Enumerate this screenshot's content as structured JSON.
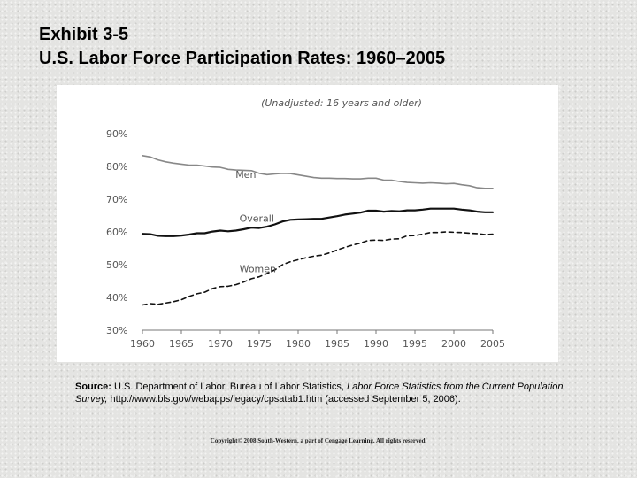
{
  "slide": {
    "title_line1": "Exhibit 3-5",
    "title_line2": "U.S. Labor Force Participation Rates: 1960–2005"
  },
  "source": {
    "label": "Source:",
    "text1": " U.S. Department of Labor, Bureau of Labor Statistics, ",
    "italic1": "Labor Force Statistics from the Current Population Survey,",
    "text2": " http://www.bls.gov/webapps/legacy/cpsatab1.htm (accessed September 5, 2006)."
  },
  "copyright": "Copyright© 2008 South-Western, a part of Cengage Learning. All rights reserved.",
  "colors": {
    "men": "#888888",
    "overall": "#111111",
    "women": "#111111",
    "axis": "#777777",
    "text": "#555555"
  },
  "chart_data": {
    "type": "line",
    "subtitle": "(Unadjusted: 16 years and older)",
    "y_tick_labels": [
      "90%",
      "80%",
      "70%",
      "60%",
      "50%",
      "40%",
      "30%"
    ],
    "y_ticks": [
      90,
      80,
      70,
      60,
      50,
      40,
      30
    ],
    "x_tick_labels": [
      "1960",
      "1965",
      "1970",
      "1975",
      "1980",
      "1985",
      "1990",
      "1995",
      "2000",
      "2005"
    ],
    "x_ticks": [
      1960,
      1965,
      1970,
      1975,
      1980,
      1985,
      1990,
      1995,
      2000,
      2005
    ],
    "xlim": [
      1960,
      2005
    ],
    "ylim": [
      30,
      90
    ],
    "grid": false,
    "x": [
      1960,
      1961,
      1962,
      1963,
      1964,
      1965,
      1966,
      1967,
      1968,
      1969,
      1970,
      1971,
      1972,
      1973,
      1974,
      1975,
      1976,
      1977,
      1978,
      1979,
      1980,
      1981,
      1982,
      1983,
      1984,
      1985,
      1986,
      1987,
      1988,
      1989,
      1990,
      1991,
      1992,
      1993,
      1994,
      1995,
      1996,
      1997,
      1998,
      1999,
      2000,
      2001,
      2002,
      2003,
      2004,
      2005
    ],
    "series": [
      {
        "name": "Men",
        "style": "solid-gray",
        "values": [
          83.3,
          82.9,
          82.0,
          81.4,
          81.0,
          80.7,
          80.4,
          80.4,
          80.1,
          79.8,
          79.7,
          79.1,
          78.9,
          78.8,
          78.7,
          77.9,
          77.5,
          77.7,
          77.9,
          77.8,
          77.4,
          77.0,
          76.6,
          76.4,
          76.4,
          76.3,
          76.3,
          76.2,
          76.2,
          76.4,
          76.4,
          75.8,
          75.8,
          75.4,
          75.1,
          75.0,
          74.9,
          75.0,
          74.9,
          74.7,
          74.8,
          74.4,
          74.1,
          73.5,
          73.3,
          73.3
        ]
      },
      {
        "name": "Overall",
        "style": "solid-black",
        "values": [
          59.4,
          59.3,
          58.8,
          58.7,
          58.7,
          58.9,
          59.2,
          59.6,
          59.6,
          60.1,
          60.4,
          60.2,
          60.4,
          60.8,
          61.3,
          61.2,
          61.6,
          62.3,
          63.2,
          63.7,
          63.8,
          63.9,
          64.0,
          64.0,
          64.4,
          64.8,
          65.3,
          65.6,
          65.9,
          66.5,
          66.5,
          66.2,
          66.4,
          66.3,
          66.6,
          66.6,
          66.8,
          67.1,
          67.1,
          67.1,
          67.1,
          66.8,
          66.6,
          66.2,
          66.0,
          66.0
        ]
      },
      {
        "name": "Women",
        "style": "dashed-black",
        "values": [
          37.7,
          38.1,
          37.9,
          38.3,
          38.7,
          39.3,
          40.3,
          41.1,
          41.6,
          42.7,
          43.3,
          43.4,
          43.9,
          44.7,
          45.7,
          46.3,
          47.3,
          48.4,
          50.0,
          50.9,
          51.5,
          52.1,
          52.6,
          52.9,
          53.6,
          54.5,
          55.3,
          56.0,
          56.6,
          57.4,
          57.5,
          57.4,
          57.8,
          57.9,
          58.8,
          58.9,
          59.3,
          59.8,
          59.8,
          60.0,
          59.9,
          59.8,
          59.6,
          59.5,
          59.2,
          59.3
        ]
      }
    ]
  }
}
